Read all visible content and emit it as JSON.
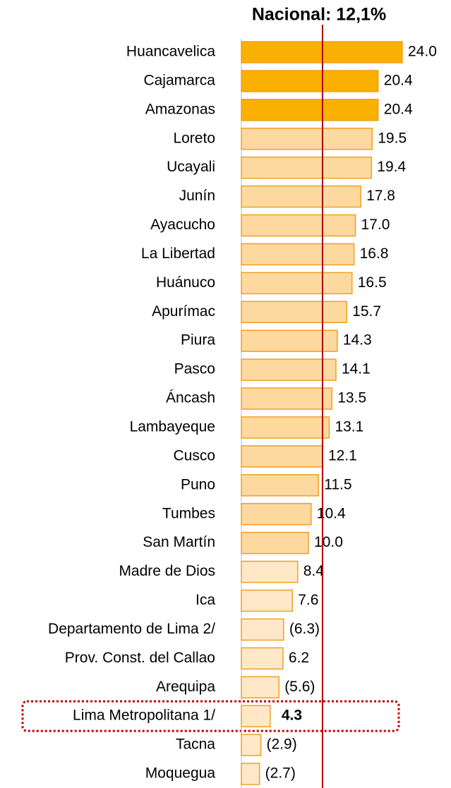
{
  "chart_data": {
    "type": "bar",
    "orientation": "horizontal",
    "categories": [
      "Huancavelica",
      "Cajamarca",
      "Amazonas",
      "Loreto",
      "Ucayali",
      "Junín",
      "Ayacucho",
      "La Libertad",
      "Huánuco",
      "Apurímac",
      "Piura",
      "Pasco",
      "Áncash",
      "Lambayeque",
      "Cusco",
      "Puno",
      "Tumbes",
      "San Martín",
      "Madre de Dios",
      "Ica",
      "Departamento de Lima 2/",
      "Prov. Const. del Callao",
      "Arequipa",
      "Lima Metropolitana 1/",
      "Tacna",
      "Moquegua"
    ],
    "values": [
      24.0,
      20.4,
      20.4,
      19.5,
      19.4,
      17.8,
      17.0,
      16.8,
      16.5,
      15.7,
      14.3,
      14.1,
      13.5,
      13.1,
      12.1,
      11.5,
      10.4,
      10.0,
      8.4,
      7.6,
      6.3,
      6.2,
      5.6,
      4.3,
      2.9,
      2.7
    ],
    "value_labels": [
      "24.0",
      "20.4",
      "20.4",
      "19.5",
      "19.4",
      "17.8",
      "17.0",
      "16.8",
      "16.5",
      "15.7",
      "14.3",
      "14.1",
      "13.5",
      "13.1",
      "12.1",
      "11.5",
      "10.4",
      "10.0",
      "8.4",
      "7.6",
      "(6.3)",
      "6.2",
      "(5.6)",
      "4.3",
      "(2.9)",
      "(2.7)"
    ],
    "colors": [
      "#f9b000",
      "#f9b000",
      "#f9b000",
      "#fdd9a0",
      "#fdd9a0",
      "#fdd9a0",
      "#fdd9a0",
      "#fdd9a0",
      "#fdd9a0",
      "#fdd9a0",
      "#fdd9a0",
      "#fdd9a0",
      "#fdd9a0",
      "#fdd9a0",
      "#fdd9a0",
      "#fdd9a0",
      "#fdd9a0",
      "#fdd9a0",
      "#ffe8c8",
      "#ffe8c8",
      "#ffe8c8",
      "#ffe8c8",
      "#ffe8c8",
      "#ffe8c8",
      "#ffe8c8",
      "#ffe8c8"
    ],
    "xlim": [
      0,
      24
    ],
    "reference_line": {
      "value": 12.1,
      "label": "Nacional: 12,1%",
      "color": "#b00000"
    },
    "highlight_index": 23
  }
}
